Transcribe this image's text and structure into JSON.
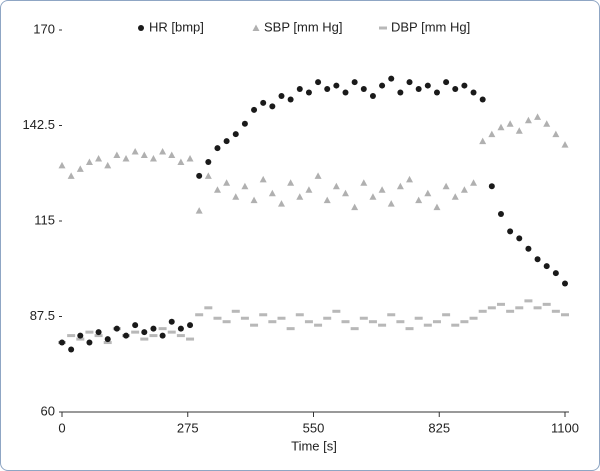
{
  "chart_data": {
    "type": "scatter",
    "xlabel": "Time [s]",
    "x": [
      0,
      20,
      40,
      60,
      80,
      100,
      120,
      140,
      160,
      180,
      200,
      220,
      240,
      260,
      280,
      300,
      320,
      340,
      360,
      380,
      400,
      420,
      440,
      460,
      480,
      500,
      520,
      540,
      560,
      580,
      600,
      620,
      640,
      660,
      680,
      700,
      720,
      740,
      760,
      780,
      800,
      820,
      840,
      860,
      880,
      900,
      920,
      940,
      960,
      980,
      1000,
      1020,
      1040,
      1060,
      1080,
      1100
    ],
    "series": [
      {
        "name": "HR [bmp]",
        "color": "#1a1a1a",
        "marker": "circle",
        "values": [
          80,
          78,
          82,
          80,
          83,
          81,
          84,
          82,
          85,
          83,
          84,
          82,
          86,
          84,
          85,
          128,
          132,
          136,
          138,
          140,
          143,
          147,
          149,
          148,
          151,
          150,
          153,
          152,
          155,
          153,
          154,
          152,
          155,
          153,
          151,
          154,
          156,
          152,
          155,
          153,
          154,
          152,
          155,
          153,
          154,
          152,
          150,
          125,
          117,
          112,
          110,
          107,
          104,
          102,
          100,
          97
        ]
      },
      {
        "name": "SBP [mm Hg]",
        "color": "#b0b0b0",
        "marker": "triangle",
        "values": [
          131,
          128,
          130,
          132,
          133,
          131,
          134,
          133,
          135,
          134,
          133,
          135,
          134,
          132,
          133,
          118,
          128,
          124,
          126,
          122,
          125,
          121,
          127,
          123,
          120,
          126,
          122,
          124,
          128,
          121,
          125,
          123,
          119,
          126,
          122,
          124,
          120,
          125,
          127,
          121,
          123,
          119,
          125,
          122,
          124,
          126,
          138,
          140,
          142,
          143,
          141,
          144,
          145,
          143,
          140,
          137
        ]
      },
      {
        "name": "DBP [mm Hg]",
        "color": "#b8b8b8",
        "marker": "dash",
        "values": [
          80,
          82,
          81,
          83,
          82,
          80,
          84,
          82,
          83,
          81,
          82,
          84,
          83,
          82,
          81,
          88,
          90,
          87,
          86,
          89,
          87,
          85,
          88,
          86,
          87,
          84,
          88,
          86,
          85,
          87,
          89,
          86,
          84,
          87,
          86,
          85,
          88,
          86,
          84,
          87,
          85,
          86,
          88,
          85,
          86,
          87,
          89,
          90,
          91,
          89,
          90,
          92,
          90,
          91,
          89,
          88
        ]
      }
    ],
    "xlim": [
      0,
      1100
    ],
    "xticks": [
      0,
      275,
      550,
      825,
      1100
    ],
    "ylim": [
      60,
      170
    ],
    "yticks": [
      60,
      87.5,
      115,
      142.5,
      170
    ],
    "grid": false
  }
}
